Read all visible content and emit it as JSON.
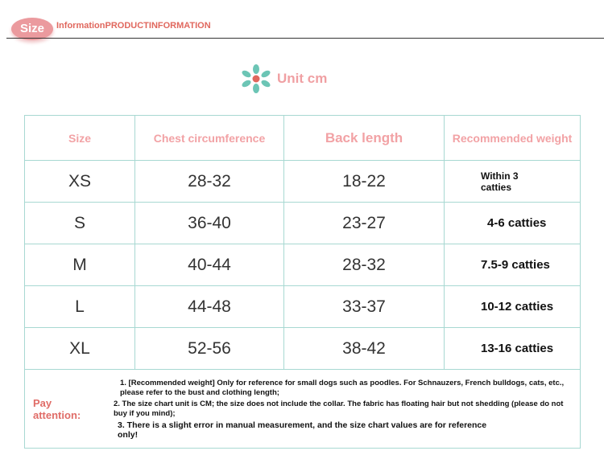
{
  "header": {
    "badge": "Size",
    "title": "InformationPRODUCTINFORMATION"
  },
  "unit": {
    "label": "Unit cm",
    "accent": "#e0675d",
    "icon_color": "#6cc5b5"
  },
  "table": {
    "columns": [
      "Size",
      "Chest circumference",
      "Back length",
      "Recommended weight"
    ],
    "rows": [
      {
        "size": "XS",
        "chest": "28-32",
        "back": "18-22",
        "weight": "Within 3 catties"
      },
      {
        "size": "S",
        "chest": "36-40",
        "back": "23-27",
        "weight": "4-6 catties"
      },
      {
        "size": "M",
        "chest": "40-44",
        "back": "28-32",
        "weight": "7.5-9 catties"
      },
      {
        "size": "L",
        "chest": "44-48",
        "back": "33-37",
        "weight": "10-12 catties"
      },
      {
        "size": "XL",
        "chest": "52-56",
        "back": "38-42",
        "weight": "13-16 catties"
      }
    ]
  },
  "notes": {
    "label": "Pay attention:",
    "items": [
      "1. [Recommended weight] Only for reference for small dogs such as poodles. For Schnauzers, French bulldogs, cats, etc., please refer to the bust and clothing length;",
      "2. The size chart unit is CM; the size does not include the collar. The fabric has floating hair but not shedding (please do not buy if you mind);",
      "3. There is a slight error in manual measurement, and the size chart values are for reference only!"
    ]
  }
}
